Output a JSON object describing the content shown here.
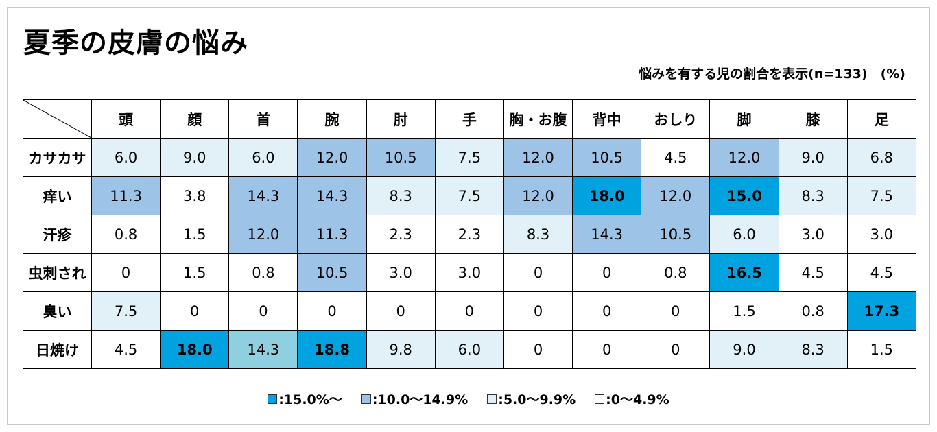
{
  "title": "夏季の皮膚の悩み",
  "note": "悩みを有する児の割合を表示(n=133)　(%)",
  "colors": {
    "level_high": "#00a3e0",
    "level_mid": "#9dc3e6",
    "level_low": "#e1f1f7",
    "level_none": "#ffffff"
  },
  "chart_data": {
    "type": "table",
    "title": "夏季の皮膚の悩み",
    "columns": [
      "頭",
      "顔",
      "首",
      "腕",
      "肘",
      "手",
      "胸・お腹",
      "背中",
      "おしり",
      "脚",
      "膝",
      "足"
    ],
    "rows": [
      {
        "label": "カサカサ",
        "values": [
          "6.0",
          "9.0",
          "6.0",
          "12.0",
          "10.5",
          "7.5",
          "12.0",
          "10.5",
          "4.5",
          "12.0",
          "9.0",
          "6.8"
        ]
      },
      {
        "label": "痒い",
        "values": [
          "11.3",
          "3.8",
          "14.3",
          "14.3",
          "8.3",
          "7.5",
          "12.0",
          "18.0",
          "12.0",
          "15.0",
          "8.3",
          "7.5"
        ]
      },
      {
        "label": "汗疹",
        "values": [
          "0.8",
          "1.5",
          "12.0",
          "11.3",
          "2.3",
          "2.3",
          "8.3",
          "14.3",
          "10.5",
          "6.0",
          "3.0",
          "3.0"
        ]
      },
      {
        "label": "虫刺され",
        "values": [
          "0",
          "1.5",
          "0.8",
          "10.5",
          "3.0",
          "3.0",
          "0",
          "0",
          "0.8",
          "16.5",
          "4.5",
          "4.5"
        ]
      },
      {
        "label": "臭い",
        "values": [
          "7.5",
          "0",
          "0",
          "0",
          "0",
          "0",
          "0",
          "0",
          "0",
          "1.5",
          "0.8",
          "17.3"
        ]
      },
      {
        "label": "日焼け",
        "values": [
          "4.5",
          "18.0",
          "14.3",
          "18.8",
          "9.8",
          "6.0",
          "0",
          "0",
          "0",
          "9.0",
          "8.3",
          "1.5"
        ]
      }
    ],
    "legend": [
      {
        "label": ":15.0%～",
        "level": "high"
      },
      {
        "label": ":10.0～14.9%",
        "level": "mid"
      },
      {
        "label": ":5.0～9.9%",
        "level": "low"
      },
      {
        "label": ":0～4.9%",
        "level": "none"
      }
    ]
  }
}
